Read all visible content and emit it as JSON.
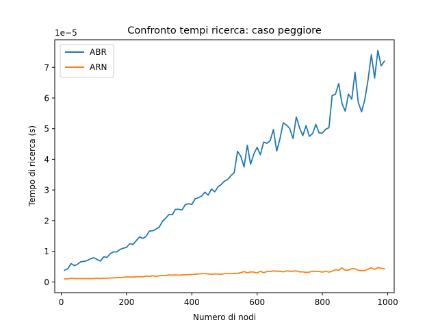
{
  "chart_data": {
    "type": "line",
    "title": "Confronto tempi ricerca: caso peggiore",
    "xlabel": "Numero di nodi",
    "ylabel": "Tempo di ricerca (s)",
    "y_offset_label": "1e−5",
    "y_scale_factor": 1e-05,
    "xlim": [
      -20,
      1020
    ],
    "ylim": [
      -0.35,
      7.9
    ],
    "x_ticks": [
      0,
      200,
      400,
      600,
      800,
      1000
    ],
    "x_tick_labels": [
      "0",
      "200",
      "400",
      "600",
      "800",
      "1000"
    ],
    "y_ticks": [
      0,
      1,
      2,
      3,
      4,
      5,
      6,
      7
    ],
    "y_tick_labels": [
      "0",
      "1",
      "2",
      "3",
      "4",
      "5",
      "6",
      "7"
    ],
    "grid": false,
    "legend_position": "top-left",
    "x": [
      10,
      20,
      30,
      40,
      50,
      60,
      70,
      80,
      90,
      100,
      110,
      120,
      130,
      140,
      150,
      160,
      170,
      180,
      190,
      200,
      210,
      220,
      230,
      240,
      250,
      260,
      270,
      280,
      290,
      300,
      310,
      320,
      330,
      340,
      350,
      360,
      370,
      380,
      390,
      400,
      410,
      420,
      430,
      440,
      450,
      460,
      470,
      480,
      490,
      500,
      510,
      520,
      530,
      540,
      550,
      560,
      570,
      580,
      590,
      600,
      610,
      620,
      630,
      640,
      650,
      660,
      670,
      680,
      690,
      700,
      710,
      720,
      730,
      740,
      750,
      760,
      770,
      780,
      790,
      800,
      810,
      820,
      830,
      840,
      850,
      860,
      870,
      880,
      890,
      900,
      910,
      920,
      930,
      940,
      950,
      960,
      970,
      980,
      990
    ],
    "series": [
      {
        "name": "ABR",
        "color": "#1f77b4",
        "values": [
          0.38,
          0.43,
          0.6,
          0.53,
          0.58,
          0.66,
          0.67,
          0.7,
          0.76,
          0.79,
          0.73,
          0.68,
          0.82,
          0.8,
          0.92,
          0.98,
          0.98,
          1.06,
          1.1,
          1.13,
          1.25,
          1.22,
          1.35,
          1.47,
          1.42,
          1.49,
          1.66,
          1.67,
          1.72,
          1.79,
          1.98,
          2.08,
          2.2,
          2.19,
          2.37,
          2.37,
          2.35,
          2.52,
          2.55,
          2.53,
          2.71,
          2.75,
          2.8,
          2.93,
          2.83,
          3.03,
          2.94,
          3.1,
          3.18,
          3.29,
          3.34,
          3.47,
          3.57,
          4.26,
          4.1,
          3.75,
          4.46,
          3.84,
          4.17,
          4.39,
          4.15,
          4.56,
          4.52,
          4.61,
          4.97,
          4.27,
          4.67,
          5.19,
          5.12,
          5.0,
          4.68,
          5.38,
          5.03,
          4.77,
          5.1,
          4.75,
          4.84,
          5.14,
          4.86,
          4.86,
          4.98,
          5.03,
          6.08,
          6.12,
          6.47,
          5.82,
          5.57,
          6.13,
          5.96,
          6.84,
          5.85,
          5.55,
          5.95,
          6.6,
          7.41,
          6.65,
          7.55,
          7.05,
          7.2
        ]
      },
      {
        "name": "ARN",
        "color": "#ff7f0e",
        "values": [
          0.1,
          0.1,
          0.12,
          0.11,
          0.11,
          0.11,
          0.11,
          0.11,
          0.11,
          0.11,
          0.12,
          0.11,
          0.12,
          0.12,
          0.13,
          0.13,
          0.14,
          0.14,
          0.15,
          0.17,
          0.16,
          0.16,
          0.17,
          0.17,
          0.17,
          0.19,
          0.18,
          0.2,
          0.18,
          0.2,
          0.21,
          0.21,
          0.23,
          0.22,
          0.23,
          0.22,
          0.23,
          0.23,
          0.24,
          0.24,
          0.25,
          0.26,
          0.27,
          0.27,
          0.26,
          0.25,
          0.26,
          0.26,
          0.25,
          0.27,
          0.27,
          0.27,
          0.28,
          0.28,
          0.3,
          0.34,
          0.3,
          0.33,
          0.32,
          0.29,
          0.35,
          0.3,
          0.34,
          0.34,
          0.36,
          0.35,
          0.35,
          0.33,
          0.36,
          0.35,
          0.35,
          0.36,
          0.33,
          0.33,
          0.31,
          0.32,
          0.35,
          0.34,
          0.34,
          0.32,
          0.35,
          0.32,
          0.35,
          0.4,
          0.38,
          0.46,
          0.38,
          0.39,
          0.43,
          0.43,
          0.38,
          0.37,
          0.37,
          0.42,
          0.46,
          0.41,
          0.47,
          0.45,
          0.43
        ]
      }
    ]
  }
}
